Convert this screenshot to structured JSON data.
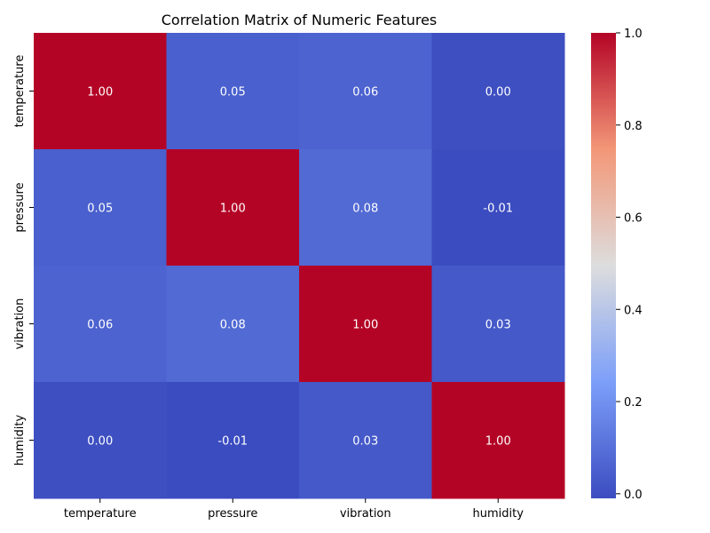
{
  "chart_data": {
    "type": "heatmap",
    "title": "Correlation Matrix of Numeric Features",
    "xlabel": "",
    "ylabel": "",
    "x_categories": [
      "temperature",
      "pressure",
      "vibration",
      "humidity"
    ],
    "y_categories": [
      "temperature",
      "pressure",
      "vibration",
      "humidity"
    ],
    "values": [
      [
        1.0,
        0.05,
        0.06,
        0.0
      ],
      [
        0.05,
        1.0,
        0.08,
        -0.01
      ],
      [
        0.06,
        0.08,
        1.0,
        0.03
      ],
      [
        0.0,
        -0.01,
        0.03,
        1.0
      ]
    ],
    "value_format": "2 decimals",
    "colormap": "coolwarm",
    "colorbar": {
      "vmin": -0.01,
      "vmax": 1.0,
      "ticks": [
        0.0,
        0.2,
        0.4,
        0.6,
        0.8,
        1.0
      ],
      "tick_labels": [
        "0.0",
        "0.2",
        "0.4",
        "0.6",
        "0.8",
        "1.0"
      ]
    },
    "grid": false
  }
}
